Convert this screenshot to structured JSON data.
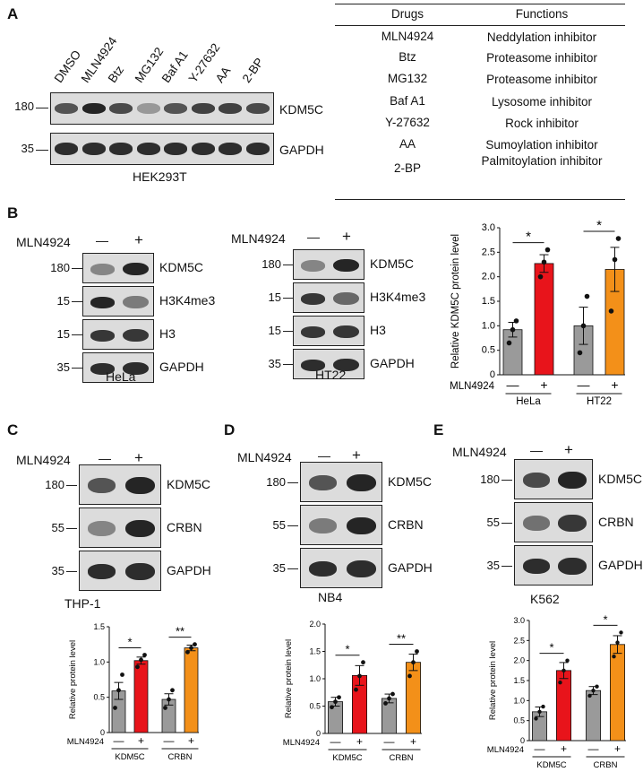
{
  "panels": {
    "A": "A",
    "B": "B",
    "C": "C",
    "D": "D",
    "E": "E"
  },
  "panel_a": {
    "lanes": [
      "DMSO",
      "MLN4924",
      "Btz",
      "MG132",
      "Baf A1",
      "Y-27632",
      "AA",
      "2-BP"
    ],
    "mw": [
      "180",
      "35"
    ],
    "proteins": [
      "KDM5C",
      "GAPDH"
    ],
    "cell_line": "HEK293T",
    "kdm5c_intensity": [
      0.7,
      0.95,
      0.75,
      0.35,
      0.7,
      0.8,
      0.8,
      0.75
    ],
    "table": {
      "headers": [
        "Drugs",
        "Functions"
      ],
      "rows": [
        [
          "MLN4924",
          "Neddylation inhibitor"
        ],
        [
          "Btz",
          "Proteasome inhibitor"
        ],
        [
          "MG132",
          "Proteasome inhibitor"
        ],
        [
          "Baf A1",
          "Lysosome inhibitor"
        ],
        [
          "Y-27632",
          "Rock inhibitor"
        ],
        [
          "AA",
          "Sumoylation inhibitor"
        ],
        [
          "2-BP",
          "Palmitoylation inhibitor"
        ]
      ]
    }
  },
  "common": {
    "treatment": "MLN4924",
    "minus": "—",
    "plus": "+"
  },
  "panel_b": {
    "hela": {
      "mw": [
        "180",
        "15",
        "15",
        "35"
      ],
      "proteins": [
        "KDM5C",
        "H3K4me3",
        "H3",
        "GAPDH"
      ],
      "cell_line": "HeLa"
    },
    "ht22": {
      "mw": [
        "180",
        "15",
        "15",
        "35"
      ],
      "proteins": [
        "KDM5C",
        "H3K4me3",
        "H3",
        "GAPDH"
      ],
      "cell_line": "HT22"
    }
  },
  "panel_c": {
    "mw": [
      "180",
      "55",
      "35"
    ],
    "proteins": [
      "KDM5C",
      "CRBN",
      "GAPDH"
    ],
    "cell_line": "THP-1"
  },
  "panel_d": {
    "mw": [
      "180",
      "55",
      "35"
    ],
    "proteins": [
      "KDM5C",
      "CRBN",
      "GAPDH"
    ],
    "cell_line": "NB4"
  },
  "panel_e": {
    "mw": [
      "180",
      "55",
      "35"
    ],
    "proteins": [
      "KDM5C",
      "CRBN",
      "GAPDH"
    ],
    "cell_line": "K562"
  },
  "chart_data": [
    {
      "id": "B",
      "type": "bar",
      "ylabel": "Relative KDM5C protein level",
      "ylim": [
        0,
        3.0
      ],
      "yticks": [
        "0",
        "0.5",
        "1.0",
        "1.5",
        "2.0",
        "2.5",
        "3.0"
      ],
      "groups": [
        "HeLa",
        "HT22"
      ],
      "treatment_row": "MLN4924",
      "bars": [
        {
          "group": "HeLa",
          "treat": "—",
          "value": 0.92,
          "err": 0.15,
          "color": "#9a9a9a",
          "points": [
            0.65,
            0.92,
            1.1
          ]
        },
        {
          "group": "HeLa",
          "treat": "+",
          "value": 2.27,
          "err": 0.18,
          "color": "#e8141b",
          "points": [
            2.0,
            2.3,
            2.55
          ]
        },
        {
          "group": "HT22",
          "treat": "—",
          "value": 1.0,
          "err": 0.38,
          "color": "#9a9a9a",
          "points": [
            0.45,
            1.0,
            1.6
          ]
        },
        {
          "group": "HT22",
          "treat": "+",
          "value": 2.15,
          "err": 0.45,
          "color": "#f39019",
          "points": [
            1.3,
            2.35,
            2.78
          ]
        }
      ],
      "sig": [
        "*",
        "*"
      ]
    },
    {
      "id": "C",
      "type": "bar",
      "ylabel": "Relative protein level",
      "ylim": [
        0,
        1.5
      ],
      "yticks": [
        "0",
        "0.5",
        "1.0",
        "1.5"
      ],
      "groups": [
        "KDM5C",
        "CRBN"
      ],
      "treatment_row": "MLN4924",
      "bars": [
        {
          "group": "KDM5C",
          "treat": "—",
          "value": 0.59,
          "err": 0.12,
          "color": "#9a9a9a",
          "points": [
            0.35,
            0.6,
            0.82
          ]
        },
        {
          "group": "KDM5C",
          "treat": "+",
          "value": 1.02,
          "err": 0.05,
          "color": "#e8141b",
          "points": [
            0.93,
            1.03,
            1.1
          ]
        },
        {
          "group": "CRBN",
          "treat": "—",
          "value": 0.47,
          "err": 0.08,
          "color": "#9a9a9a",
          "points": [
            0.35,
            0.47,
            0.6
          ]
        },
        {
          "group": "CRBN",
          "treat": "+",
          "value": 1.2,
          "err": 0.04,
          "color": "#f39019",
          "points": [
            1.14,
            1.2,
            1.25
          ]
        }
      ],
      "sig": [
        "*",
        "**"
      ]
    },
    {
      "id": "D",
      "type": "bar",
      "ylabel": "Relative protein level",
      "ylim": [
        0,
        2.0
      ],
      "yticks": [
        "0",
        "0.5",
        "1.0",
        "1.5",
        "2.0"
      ],
      "groups": [
        "KDM5C",
        "CRBN"
      ],
      "treatment_row": "MLN4924",
      "bars": [
        {
          "group": "KDM5C",
          "treat": "—",
          "value": 0.58,
          "err": 0.08,
          "color": "#9a9a9a",
          "points": [
            0.48,
            0.58,
            0.66
          ]
        },
        {
          "group": "KDM5C",
          "treat": "+",
          "value": 1.06,
          "err": 0.18,
          "color": "#e8141b",
          "points": [
            0.8,
            1.05,
            1.3
          ]
        },
        {
          "group": "CRBN",
          "treat": "—",
          "value": 0.64,
          "err": 0.08,
          "color": "#9a9a9a",
          "points": [
            0.55,
            0.64,
            0.72
          ]
        },
        {
          "group": "CRBN",
          "treat": "+",
          "value": 1.3,
          "err": 0.15,
          "color": "#f39019",
          "points": [
            1.05,
            1.3,
            1.5
          ]
        }
      ],
      "sig": [
        "*",
        "**"
      ]
    },
    {
      "id": "E",
      "type": "bar",
      "ylabel": "Relative protein level",
      "ylim": [
        0,
        3.0
      ],
      "yticks": [
        "0",
        "0.5",
        "1.0",
        "1.5",
        "2.0",
        "2.5",
        "3.0"
      ],
      "groups": [
        "KDM5C",
        "CRBN"
      ],
      "treatment_row": "MLN4924",
      "bars": [
        {
          "group": "KDM5C",
          "treat": "—",
          "value": 0.72,
          "err": 0.12,
          "color": "#9a9a9a",
          "points": [
            0.55,
            0.72,
            0.85
          ]
        },
        {
          "group": "KDM5C",
          "treat": "+",
          "value": 1.75,
          "err": 0.2,
          "color": "#e8141b",
          "points": [
            1.45,
            1.75,
            2.0
          ]
        },
        {
          "group": "CRBN",
          "treat": "—",
          "value": 1.25,
          "err": 0.1,
          "color": "#9a9a9a",
          "points": [
            1.12,
            1.25,
            1.35
          ]
        },
        {
          "group": "CRBN",
          "treat": "+",
          "value": 2.4,
          "err": 0.22,
          "color": "#f39019",
          "points": [
            2.1,
            2.45,
            2.7
          ]
        }
      ],
      "sig": [
        "*",
        "*"
      ]
    }
  ]
}
